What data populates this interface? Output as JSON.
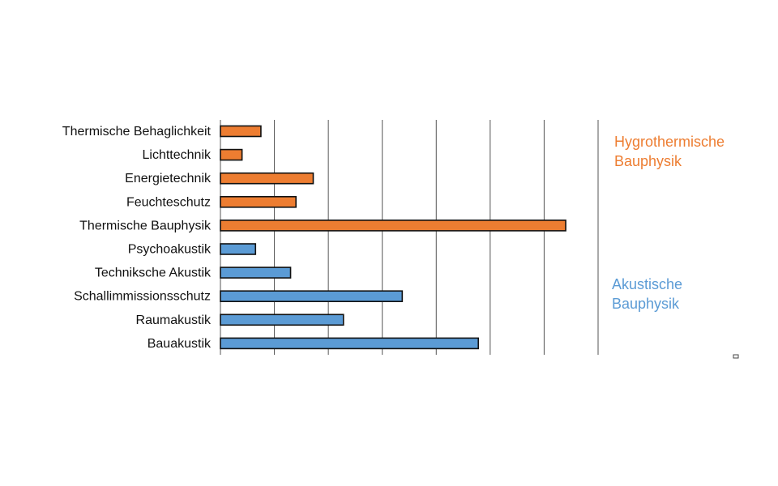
{
  "chart_data": {
    "type": "bar",
    "orientation": "horizontal",
    "title": "",
    "xlabel": "",
    "ylabel": "",
    "xlim": [
      0,
      7
    ],
    "grid": true,
    "categories": [
      "Thermische Behaglichkeit",
      "Lichttechnik",
      "Energietechnik",
      "Feuchteschutz",
      "Thermische Bauphysik",
      "Psychoakustik",
      "Techniksche Akustik",
      "Schallimmissionsschutz",
      "Raumakustik",
      "Bauakustik"
    ],
    "values": [
      0.75,
      0.4,
      1.72,
      1.4,
      6.4,
      0.65,
      1.3,
      3.37,
      2.28,
      4.78
    ],
    "groups": [
      {
        "name_line1": "Hygrothermische",
        "name_line2": "Bauphysik",
        "color": "#ED7D31",
        "categories": [
          "Thermische Behaglichkeit",
          "Lichttechnik",
          "Energietechnik",
          "Feuchteschutz",
          "Thermische Bauphysik"
        ]
      },
      {
        "name_line1": "Akustische",
        "name_line2": "Bauphysik",
        "color": "#5B9BD5",
        "categories": [
          "Psychoakustik",
          "Techniksche Akustik",
          "Schallimmissionsschutz",
          "Raumakustik",
          "Bauakustik"
        ]
      }
    ],
    "colors": [
      "#ED7D31",
      "#ED7D31",
      "#ED7D31",
      "#ED7D31",
      "#ED7D31",
      "#5B9BD5",
      "#5B9BD5",
      "#5B9BD5",
      "#5B9BD5",
      "#5B9BD5"
    ]
  }
}
